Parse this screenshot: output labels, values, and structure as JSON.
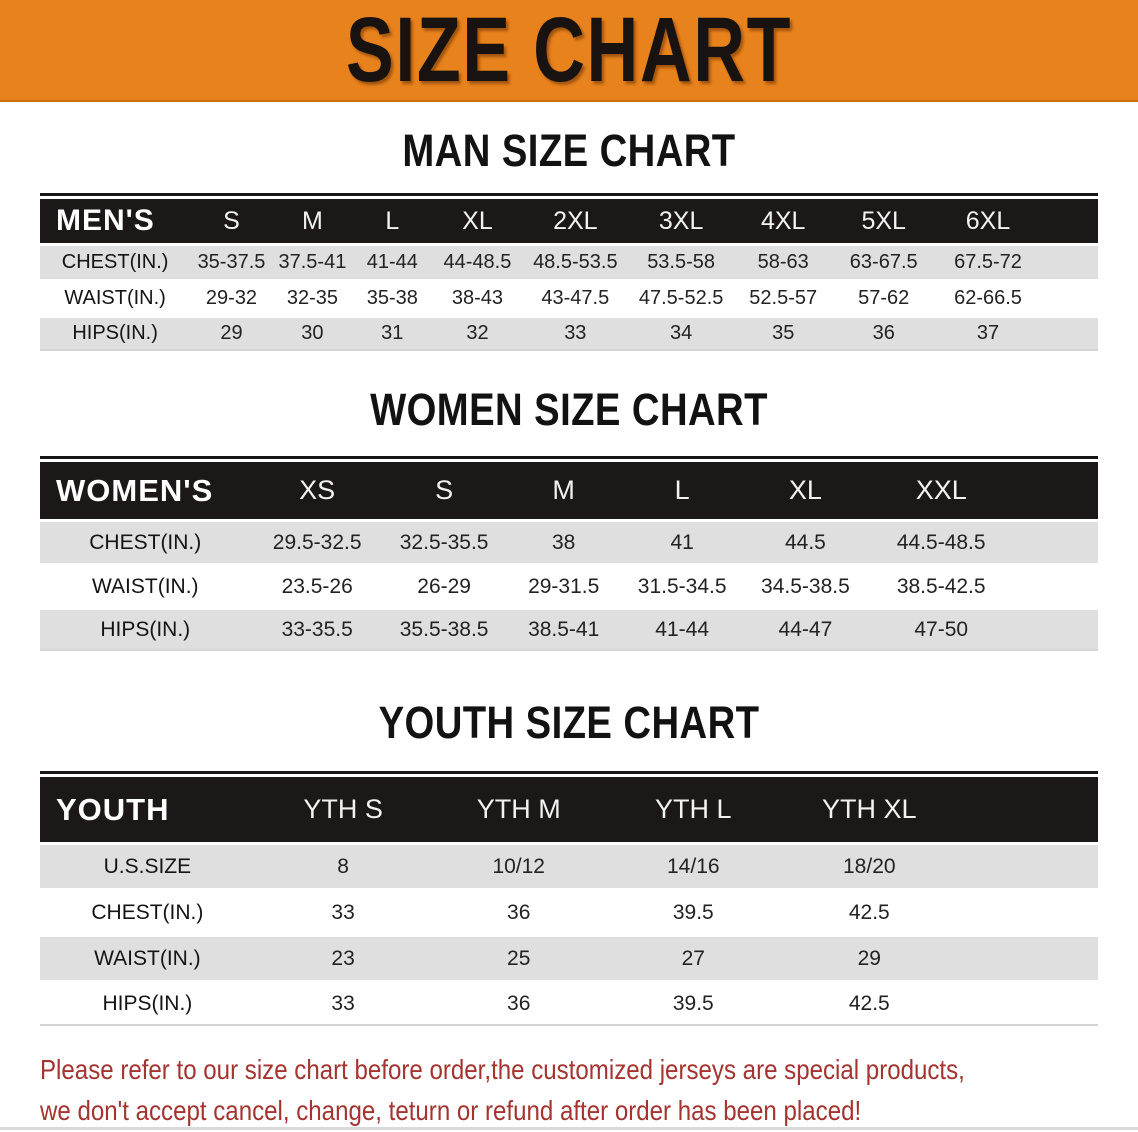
{
  "banner": {
    "title": "SIZE CHART",
    "bg_color": "#E8821C",
    "text_color": "#181310"
  },
  "sections": [
    {
      "heading": "MAN SIZE CHART",
      "table": {
        "corner": "MEN'S",
        "columns": [
          "S",
          "M",
          "L",
          "XL",
          "2XL",
          "3XL",
          "4XL",
          "5XL",
          "6XL"
        ],
        "rows": [
          {
            "label": "CHEST(IN.)",
            "values": [
              "35-37.5",
              "37.5-41",
              "41-44",
              "44-48.5",
              "48.5-53.5",
              "53.5-58",
              "58-63",
              "63-67.5",
              "67.5-72"
            ]
          },
          {
            "label": "WAIST(IN.)",
            "values": [
              "29-32",
              "32-35",
              "35-38",
              "38-43",
              "43-47.5",
              "47.5-52.5",
              "52.5-57",
              "57-62",
              "62-66.5"
            ]
          },
          {
            "label": "HIPS(IN.)",
            "values": [
              "29",
              "30",
              "31",
              "32",
              "33",
              "34",
              "35",
              "36",
              "37"
            ]
          }
        ]
      }
    },
    {
      "heading": "WOMEN SIZE CHART",
      "table": {
        "corner": "WOMEN'S",
        "columns": [
          "XS",
          "S",
          "M",
          "L",
          "XL",
          "XXL"
        ],
        "rows": [
          {
            "label": "CHEST(IN.)",
            "values": [
              "29.5-32.5",
              "32.5-35.5",
              "38",
              "41",
              "44.5",
              "44.5-48.5"
            ]
          },
          {
            "label": "WAIST(IN.)",
            "values": [
              "23.5-26",
              "26-29",
              "29-31.5",
              "31.5-34.5",
              "34.5-38.5",
              "38.5-42.5"
            ]
          },
          {
            "label": "HIPS(IN.)",
            "values": [
              "33-35.5",
              "35.5-38.5",
              "38.5-41",
              "41-44",
              "44-47",
              "47-50"
            ]
          }
        ]
      }
    },
    {
      "heading": "YOUTH SIZE CHART",
      "table": {
        "corner": "YOUTH",
        "columns": [
          "YTH S",
          "YTH M",
          "YTH L",
          "YTH XL"
        ],
        "rows": [
          {
            "label": "U.S.SIZE",
            "values": [
              "8",
              "10/12",
              "14/16",
              "18/20"
            ]
          },
          {
            "label": "CHEST(IN.)",
            "values": [
              "33",
              "36",
              "39.5",
              "42.5"
            ]
          },
          {
            "label": "WAIST(IN.)",
            "values": [
              "23",
              "25",
              "27",
              "29"
            ]
          },
          {
            "label": "HIPS(IN.)",
            "values": [
              "33",
              "36",
              "39.5",
              "42.5"
            ]
          }
        ]
      }
    }
  ],
  "disclaimer": {
    "line1": "Please refer to our size chart before order,the customized jerseys are special products,",
    "line2": "we don't accept cancel, change, teturn or refund after order has been placed!",
    "color": "#A33430"
  },
  "table_colors": {
    "header_bar": "#1c1818",
    "header_text": "#ffffff",
    "row_gray": "#DFDFDF",
    "row_white": "#FFFFFF"
  }
}
